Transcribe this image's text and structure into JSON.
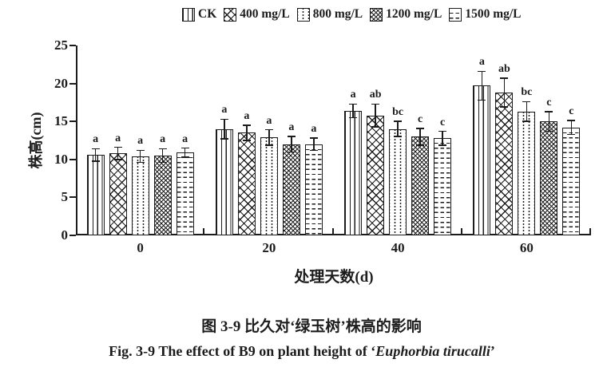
{
  "figure": {
    "captions": {
      "chinese": "图 3-9 比久对‘绿玉树’株高的影响",
      "english_prefix": "Fig. 3-9 The effect of B9 on plant height of ‘",
      "english_species": "Euphorbia tirucalli",
      "english_suffix": "’"
    }
  },
  "colors": {
    "ink": "#1c1c1c",
    "background": "#ffffff"
  },
  "chart_data": {
    "type": "bar",
    "title": "",
    "xlabel": "处理天数(d)",
    "ylabel": "株高(cm)",
    "ylim": [
      0,
      25
    ],
    "yticks": [
      0,
      5,
      10,
      15,
      20,
      25
    ],
    "categories": [
      "0",
      "20",
      "40",
      "60"
    ],
    "grid": false,
    "legend_position": "top",
    "error_bars": true,
    "series": [
      {
        "name": "CK",
        "pattern": "vertical-lines",
        "values": [
          10.6,
          14.0,
          16.4,
          19.7
        ],
        "errors": [
          0.8,
          1.3,
          0.9,
          1.9
        ],
        "letters": [
          "a",
          "a",
          "a",
          "a"
        ]
      },
      {
        "name": "400 mg/L",
        "pattern": "crosshatch",
        "values": [
          10.8,
          13.5,
          15.8,
          18.8
        ],
        "errors": [
          0.8,
          1.0,
          1.5,
          1.9
        ],
        "letters": [
          "a",
          "a",
          "ab",
          "ab"
        ]
      },
      {
        "name": "800 mg/L",
        "pattern": "dotted-lines",
        "values": [
          10.4,
          12.9,
          14.0,
          16.3
        ],
        "errors": [
          0.8,
          1.0,
          1.0,
          1.3
        ],
        "letters": [
          "a",
          "a",
          "bc",
          "bc"
        ]
      },
      {
        "name": "1200 mg/L",
        "pattern": "basket-weave",
        "values": [
          10.5,
          12.0,
          13.0,
          15.0
        ],
        "errors": [
          0.9,
          1.0,
          1.1,
          1.3
        ],
        "letters": [
          "a",
          "a",
          "c",
          "c"
        ]
      },
      {
        "name": "1500 mg/L",
        "pattern": "horizontal-dashes",
        "values": [
          10.9,
          12.0,
          12.8,
          14.2
        ],
        "errors": [
          0.6,
          0.8,
          0.9,
          0.9
        ],
        "letters": [
          "a",
          "a",
          "c",
          "c"
        ]
      }
    ]
  }
}
